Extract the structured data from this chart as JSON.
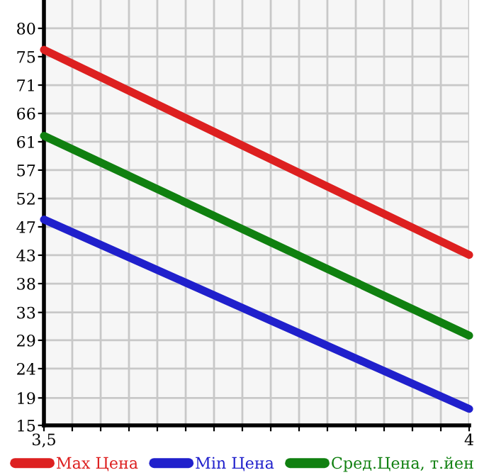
{
  "chart_data": {
    "type": "line",
    "x": [
      3.5,
      4
    ],
    "series": [
      {
        "name": "Max Цена",
        "color": "#dd2020",
        "values": [
          76.5,
          42.9
        ]
      },
      {
        "name": "Min Цена",
        "color": "#2020cc",
        "values": [
          48.7,
          17.7
        ]
      },
      {
        "name": "Сред.Цена, т.йен",
        "color": "#108010",
        "values": [
          62.4,
          29.7
        ]
      }
    ],
    "xlim": [
      3.5,
      4
    ],
    "xticks": [
      {
        "value": 3.5,
        "label": "3,5"
      },
      {
        "value": 3.5333,
        "label": null
      },
      {
        "value": 3.5667,
        "label": null
      },
      {
        "value": 3.6,
        "label": null
      },
      {
        "value": 3.6333,
        "label": null
      },
      {
        "value": 3.6667,
        "label": null
      },
      {
        "value": 3.7,
        "label": null
      },
      {
        "value": 3.7333,
        "label": null
      },
      {
        "value": 3.7667,
        "label": null
      },
      {
        "value": 3.8,
        "label": null
      },
      {
        "value": 3.8333,
        "label": null
      },
      {
        "value": 3.8667,
        "label": null
      },
      {
        "value": 3.9,
        "label": null
      },
      {
        "value": 3.9333,
        "label": null
      },
      {
        "value": 3.9667,
        "label": null
      },
      4
    ],
    "ylim": [
      15,
      84.64
    ],
    "yticks": [
      15,
      {
        "value": 19.49,
        "label": "19"
      },
      {
        "value": 24.29,
        "label": "24"
      },
      {
        "value": 28.93,
        "label": "29"
      },
      {
        "value": 33.49,
        "label": "33"
      },
      {
        "value": 38.21,
        "label": "38"
      },
      {
        "value": 42.86,
        "label": "43"
      },
      {
        "value": 47.5,
        "label": "47"
      },
      {
        "value": 52.14,
        "label": "52"
      },
      {
        "value": 56.79,
        "label": "57"
      },
      {
        "value": 61.43,
        "label": "61"
      },
      {
        "value": 66.07,
        "label": "66"
      },
      {
        "value": 70.71,
        "label": "71"
      },
      {
        "value": 75.36,
        "label": "75"
      },
      {
        "value": 80,
        "label": "80"
      }
    ],
    "grid": true,
    "legend": "bottom",
    "marker": "none",
    "line_style": "solid"
  }
}
